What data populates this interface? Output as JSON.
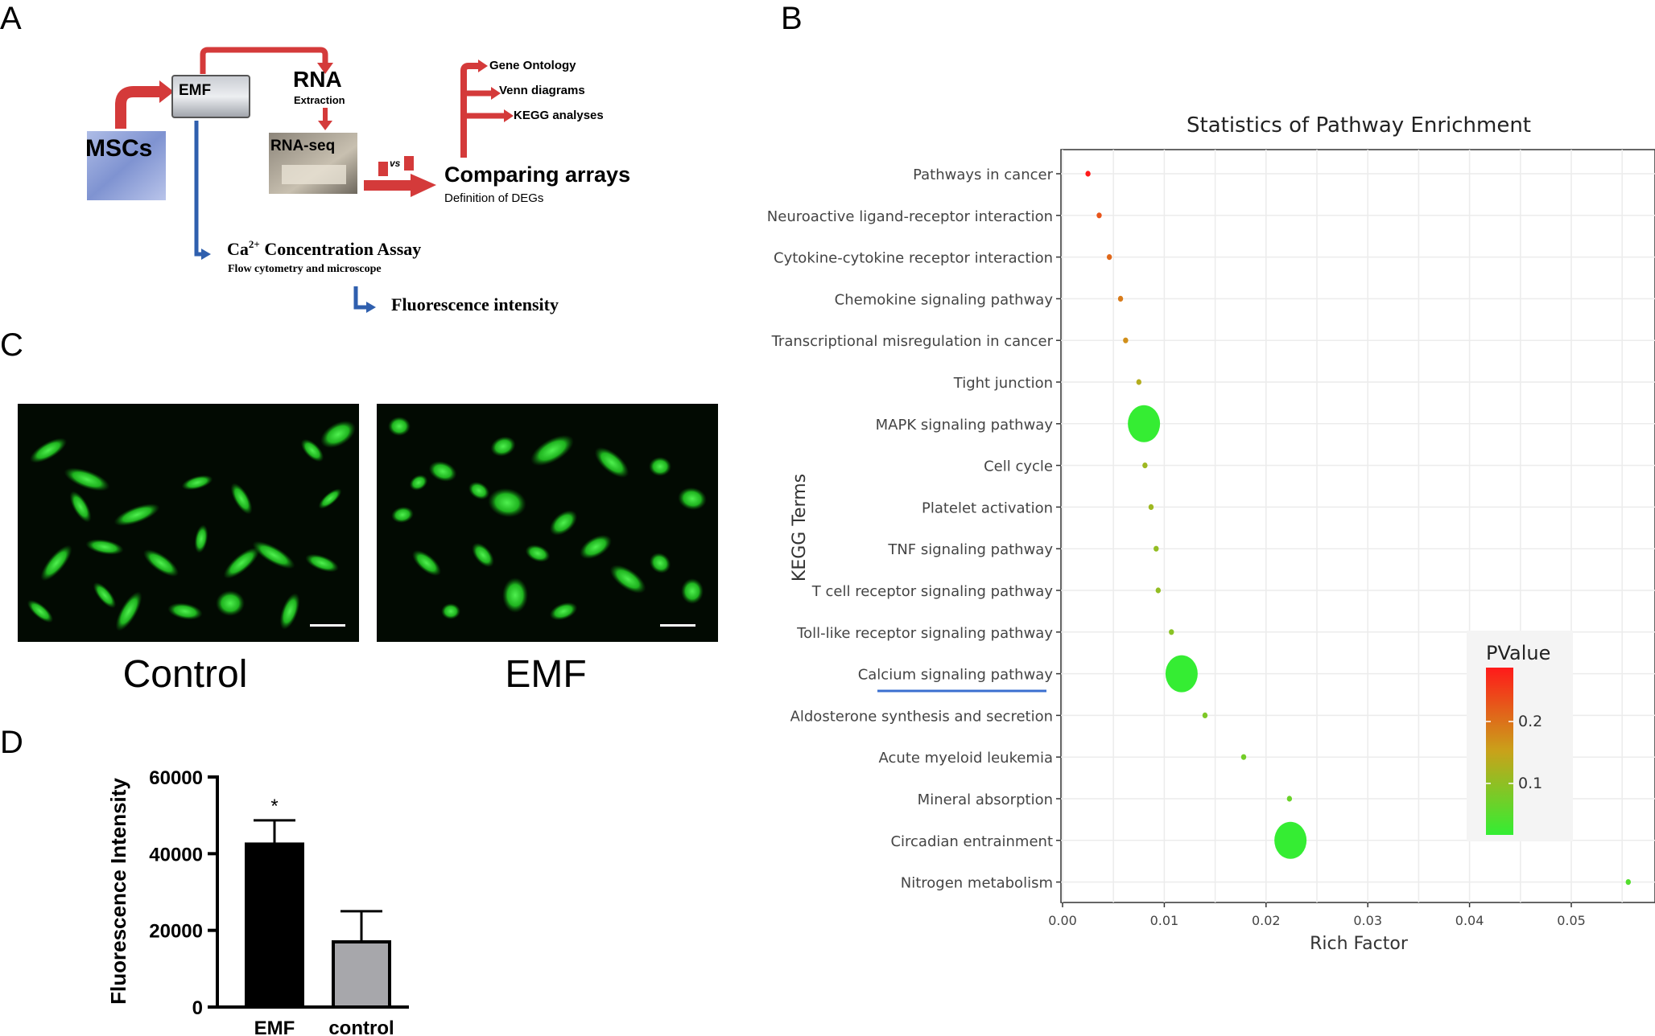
{
  "panel_labels": {
    "a": "A",
    "b": "B",
    "c": "C",
    "d": "D"
  },
  "workflow": {
    "mscs": "MSCs",
    "emf": "EMF",
    "rna": "RNA",
    "extraction": "Extraction",
    "rnaseq": "RNA-seq",
    "vs": "vs",
    "comparing": "Comparing arrays",
    "degs": "Definition of DEGs",
    "go": "Gene Ontology",
    "venn": "Venn diagrams",
    "kegg": "KEGG analyses",
    "ca_prefix": "Ca",
    "ca_sup": "2+",
    "ca_rest": " Concentration Assay",
    "flow": "Flow cytometry and microscope",
    "fluor": "Fluorescence intensity"
  },
  "micrographs": {
    "left_label": "Control",
    "right_label": "EMF"
  },
  "colors": {
    "red_arrow": "#d43a3a",
    "blue_arrow": "#2f5fae",
    "cell_green": "#2fd12f",
    "bar_black": "#000000",
    "bar_gray": "#a7a7ab",
    "pvalue_high": "#ff1a1a",
    "pvalue_low": "#33ee33",
    "underline_blue": "#3a6fd0"
  },
  "chart_data": [
    {
      "type": "bar",
      "categories": [
        "EMF",
        "control"
      ],
      "values": [
        42500,
        17000
      ],
      "errors": [
        6200,
        8000
      ],
      "bar_colors": [
        "#000000",
        "#a7a7ab"
      ],
      "significance": [
        "*",
        ""
      ],
      "ylabel": "Fluorescence Intensity",
      "ylim": [
        0,
        60000
      ],
      "yticks": [
        "0",
        "20000",
        "40000",
        "60000"
      ]
    },
    {
      "type": "scatter",
      "title": "Statistics of Pathway Enrichment",
      "xlabel": "Rich Factor",
      "ylabel": "KEGG Terms",
      "xlim": [
        0,
        0.058
      ],
      "xticks": [
        "0.00",
        "0.01",
        "0.02",
        "0.03",
        "0.04",
        "0.05"
      ],
      "grid": true,
      "legend": {
        "title": "PValue",
        "ticks": [
          "0.2",
          "0.1"
        ],
        "position": "right"
      },
      "terms": [
        "Pathways in cancer",
        "Neuroactive ligand-receptor interaction",
        "Cytokine-cytokine receptor interaction",
        "Chemokine signaling pathway",
        "Transcriptional misregulation in cancer",
        "Tight junction",
        "MAPK signaling pathway",
        "Cell cycle",
        "Platelet activation",
        "TNF signaling pathway",
        "T cell receptor signaling pathway",
        "Toll-like receptor signaling pathway",
        "Calcium signaling pathway",
        "Aldosterone synthesis and secretion",
        "Acute myeloid leukemia",
        "Mineral absorption",
        "Circadian entrainment",
        "Nitrogen metabolism"
      ],
      "rich_factor": [
        0.0025,
        0.0036,
        0.0046,
        0.0057,
        0.0062,
        0.0075,
        0.008,
        0.0081,
        0.0087,
        0.0092,
        0.0094,
        0.0107,
        0.0117,
        0.014,
        0.0178,
        0.0223,
        0.0224,
        0.0556
      ],
      "pvalue": [
        0.28,
        0.22,
        0.2,
        0.18,
        0.16,
        0.12,
        0.002,
        0.1,
        0.1,
        0.09,
        0.09,
        0.08,
        0.002,
        0.07,
        0.06,
        0.05,
        0.002,
        0.03
      ],
      "gene_count": [
        1,
        1,
        1,
        1,
        1,
        1,
        12,
        1,
        1,
        1,
        1,
        1,
        12,
        1,
        1,
        1,
        12,
        1
      ],
      "underlined_term": "Calcium signaling pathway"
    }
  ]
}
